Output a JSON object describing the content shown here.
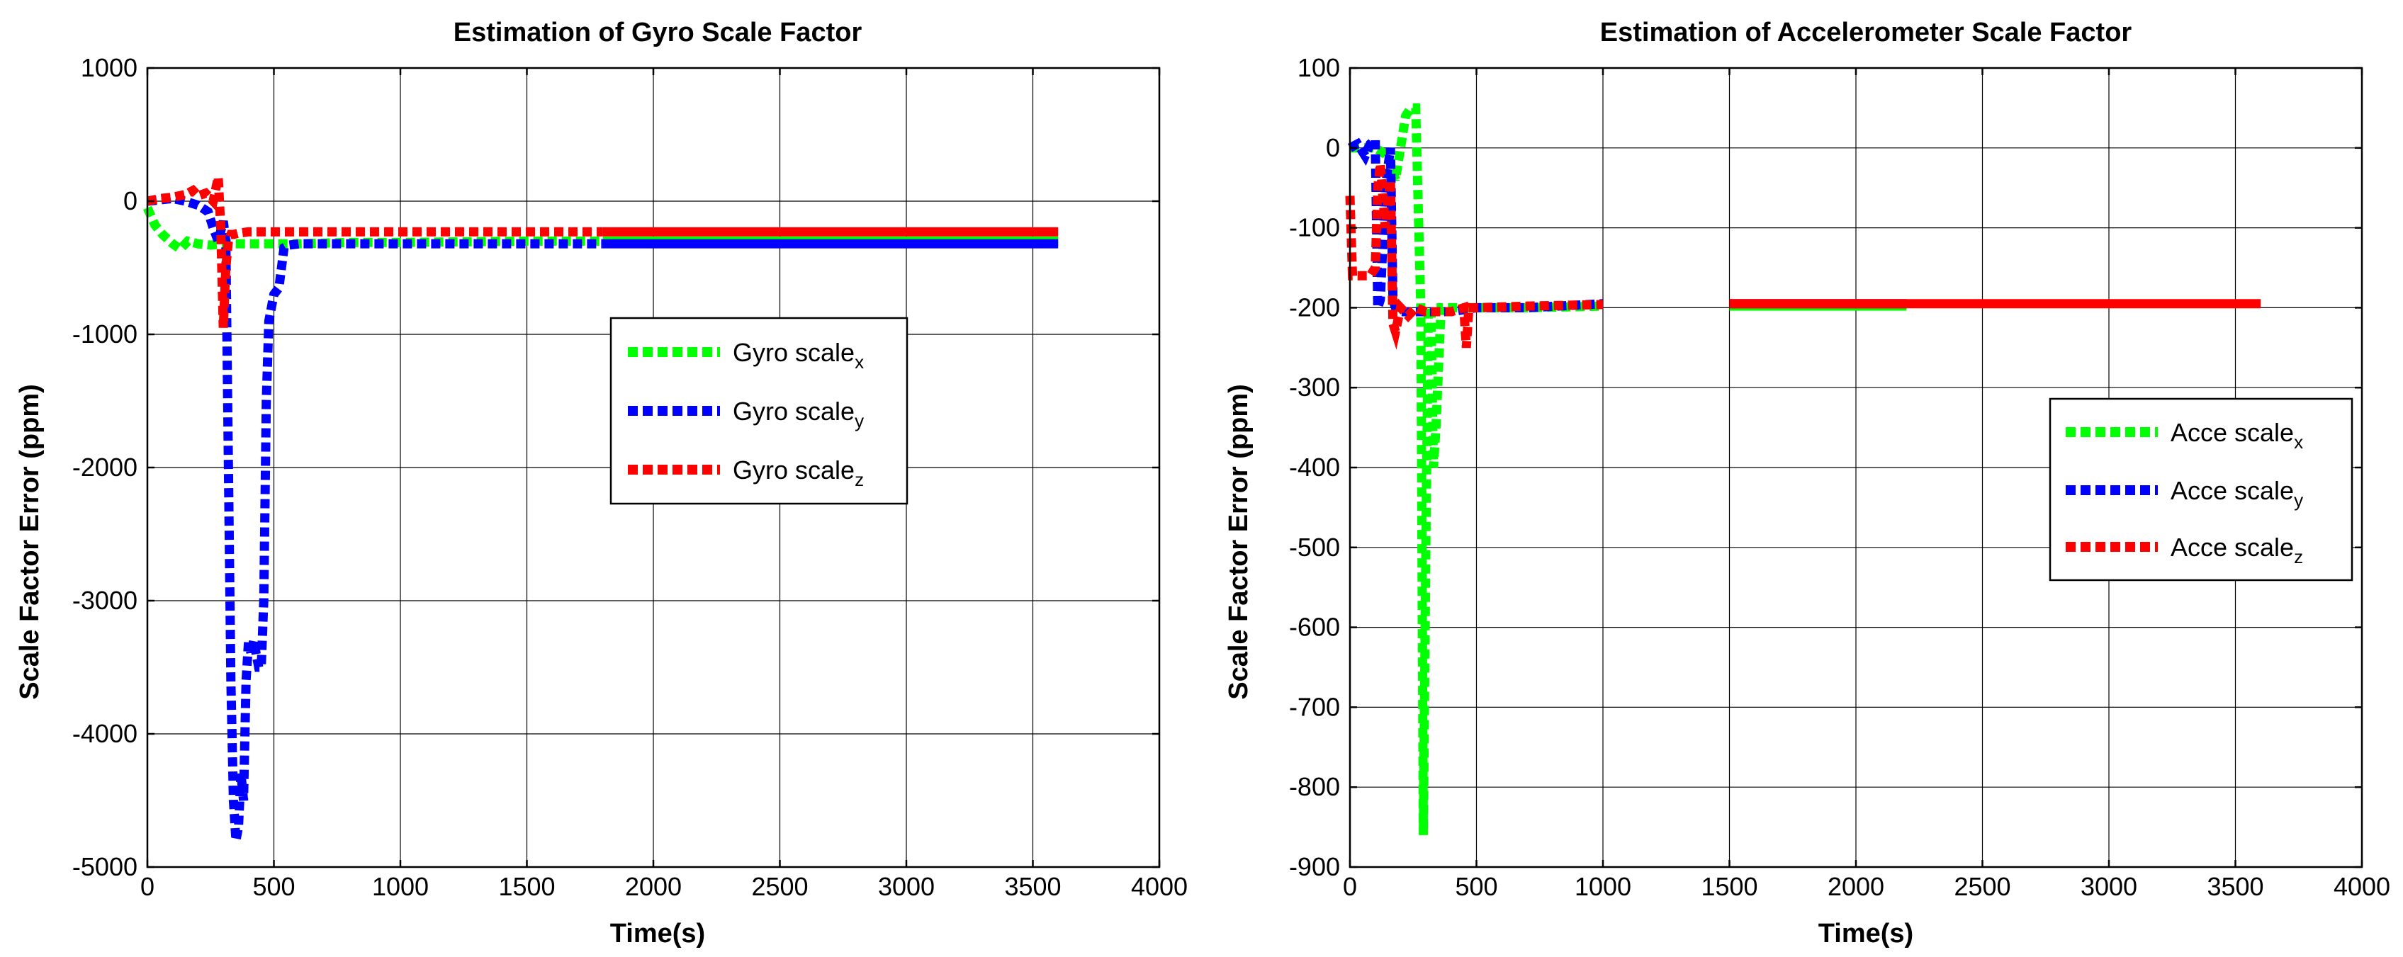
{
  "chart_data": [
    {
      "type": "line",
      "title": "Estimation of Gyro Scale Factor",
      "xlabel": "Time(s)",
      "ylabel": "Scale Factor Error (ppm)",
      "xlim": [
        0,
        4000
      ],
      "ylim": [
        -5000,
        1000
      ],
      "xticks": [
        0,
        500,
        1000,
        1500,
        2000,
        2500,
        3000,
        3500,
        4000
      ],
      "yticks": [
        -5000,
        -4000,
        -3000,
        -2000,
        -1000,
        0,
        1000
      ],
      "grid": true,
      "legend_position": "center-right",
      "series": [
        {
          "name": "Gyro scale",
          "subscript": "x",
          "color": "#00ff00",
          "x": [
            0,
            30,
            60,
            100,
            130,
            160,
            200,
            250,
            300,
            350,
            400,
            500,
            600,
            800,
            1000,
            1500,
            1800,
            2500,
            3600
          ],
          "y": [
            -50,
            -180,
            -250,
            -320,
            -360,
            -300,
            -320,
            -330,
            -320,
            -320,
            -320,
            -320,
            -320,
            -310,
            -310,
            -300,
            -300,
            -300,
            -300
          ]
        },
        {
          "name": "Gyro scale",
          "subscript": "y",
          "color": "#0000ff",
          "x": [
            0,
            100,
            150,
            200,
            240,
            260,
            280,
            300,
            310,
            330,
            340,
            350,
            360,
            370,
            380,
            390,
            400,
            410,
            420,
            440,
            450,
            460,
            470,
            480,
            500,
            520,
            540,
            560,
            600,
            700,
            800,
            1000,
            1500,
            1800,
            2500,
            3600
          ],
          "y": [
            0,
            20,
            0,
            -30,
            -80,
            -200,
            -300,
            -150,
            -300,
            -3600,
            -4500,
            -4800,
            -4700,
            -4300,
            -4500,
            -3600,
            -3300,
            -3400,
            -3300,
            -3500,
            -3500,
            -3000,
            -1500,
            -900,
            -700,
            -650,
            -350,
            -330,
            -320,
            -320,
            -320,
            -320,
            -320,
            -320,
            -320,
            -320
          ]
        },
        {
          "name": "Gyro scale",
          "subscript": "z",
          "color": "#ff0000",
          "x": [
            0,
            50,
            100,
            150,
            180,
            200,
            230,
            260,
            280,
            290,
            300,
            310,
            320,
            330,
            340,
            360,
            400,
            500,
            700,
            1000,
            1500,
            1800,
            2500,
            3600
          ],
          "y": [
            0,
            20,
            30,
            50,
            80,
            40,
            60,
            0,
            180,
            -200,
            -950,
            -500,
            -300,
            -250,
            -250,
            -240,
            -230,
            -230,
            -230,
            -230,
            -230,
            -230,
            -230,
            -230
          ]
        }
      ]
    },
    {
      "type": "line",
      "title": "Estimation of Accelerometer Scale Factor",
      "xlabel": "Time(s)",
      "ylabel": "Scale Factor Error (ppm)",
      "xlim": [
        0,
        4000
      ],
      "ylim": [
        -900,
        100
      ],
      "xticks": [
        0,
        500,
        1000,
        1500,
        2000,
        2500,
        3000,
        3500,
        4000
      ],
      "yticks": [
        -900,
        -800,
        -700,
        -600,
        -500,
        -400,
        -300,
        -200,
        -100,
        0,
        100
      ],
      "grid": true,
      "legend_position": "right",
      "series": [
        {
          "name": "Acce scale",
          "subscript": "x",
          "color": "#00ff00",
          "x": [
            0,
            100,
            150,
            180,
            200,
            220,
            240,
            260,
            280,
            290,
            300,
            310,
            320,
            330,
            340,
            360,
            400,
            500,
            700,
            1000,
            1500,
            2000,
            2200
          ],
          "y": [
            0,
            0,
            -10,
            -40,
            0,
            40,
            50,
            50,
            -200,
            -860,
            -500,
            -200,
            -200,
            -400,
            -350,
            -200,
            -200,
            -200,
            -200,
            -198,
            -198,
            -198,
            -198
          ]
        },
        {
          "name": "Acce scale",
          "subscript": "y",
          "color": "#0000ff",
          "x": [
            0,
            30,
            60,
            80,
            100,
            110,
            120,
            140,
            160,
            170,
            180,
            200,
            250,
            300,
            400,
            500,
            700,
            1000,
            1500,
            2000,
            2200
          ],
          "y": [
            0,
            5,
            -10,
            5,
            10,
            -200,
            -190,
            -50,
            0,
            -190,
            -200,
            -205,
            -205,
            -205,
            -205,
            -200,
            -200,
            -195,
            -195,
            -195,
            -195
          ]
        },
        {
          "name": "Acce scale",
          "subscript": "z",
          "color": "#ff0000",
          "x": [
            0,
            10,
            20,
            40,
            60,
            80,
            100,
            110,
            120,
            140,
            160,
            170,
            180,
            200,
            230,
            260,
            300,
            400,
            450,
            460,
            470,
            480,
            500,
            700,
            1000,
            1500,
            2000,
            2500,
            3000,
            3600
          ],
          "y": [
            -60,
            -160,
            -160,
            -160,
            -160,
            -160,
            -150,
            -50,
            -20,
            -100,
            -40,
            -220,
            -230,
            -200,
            -210,
            -200,
            -205,
            -205,
            -200,
            -250,
            -200,
            -200,
            -200,
            -198,
            -196,
            -195,
            -195,
            -195,
            -195,
            -195
          ]
        }
      ]
    }
  ]
}
